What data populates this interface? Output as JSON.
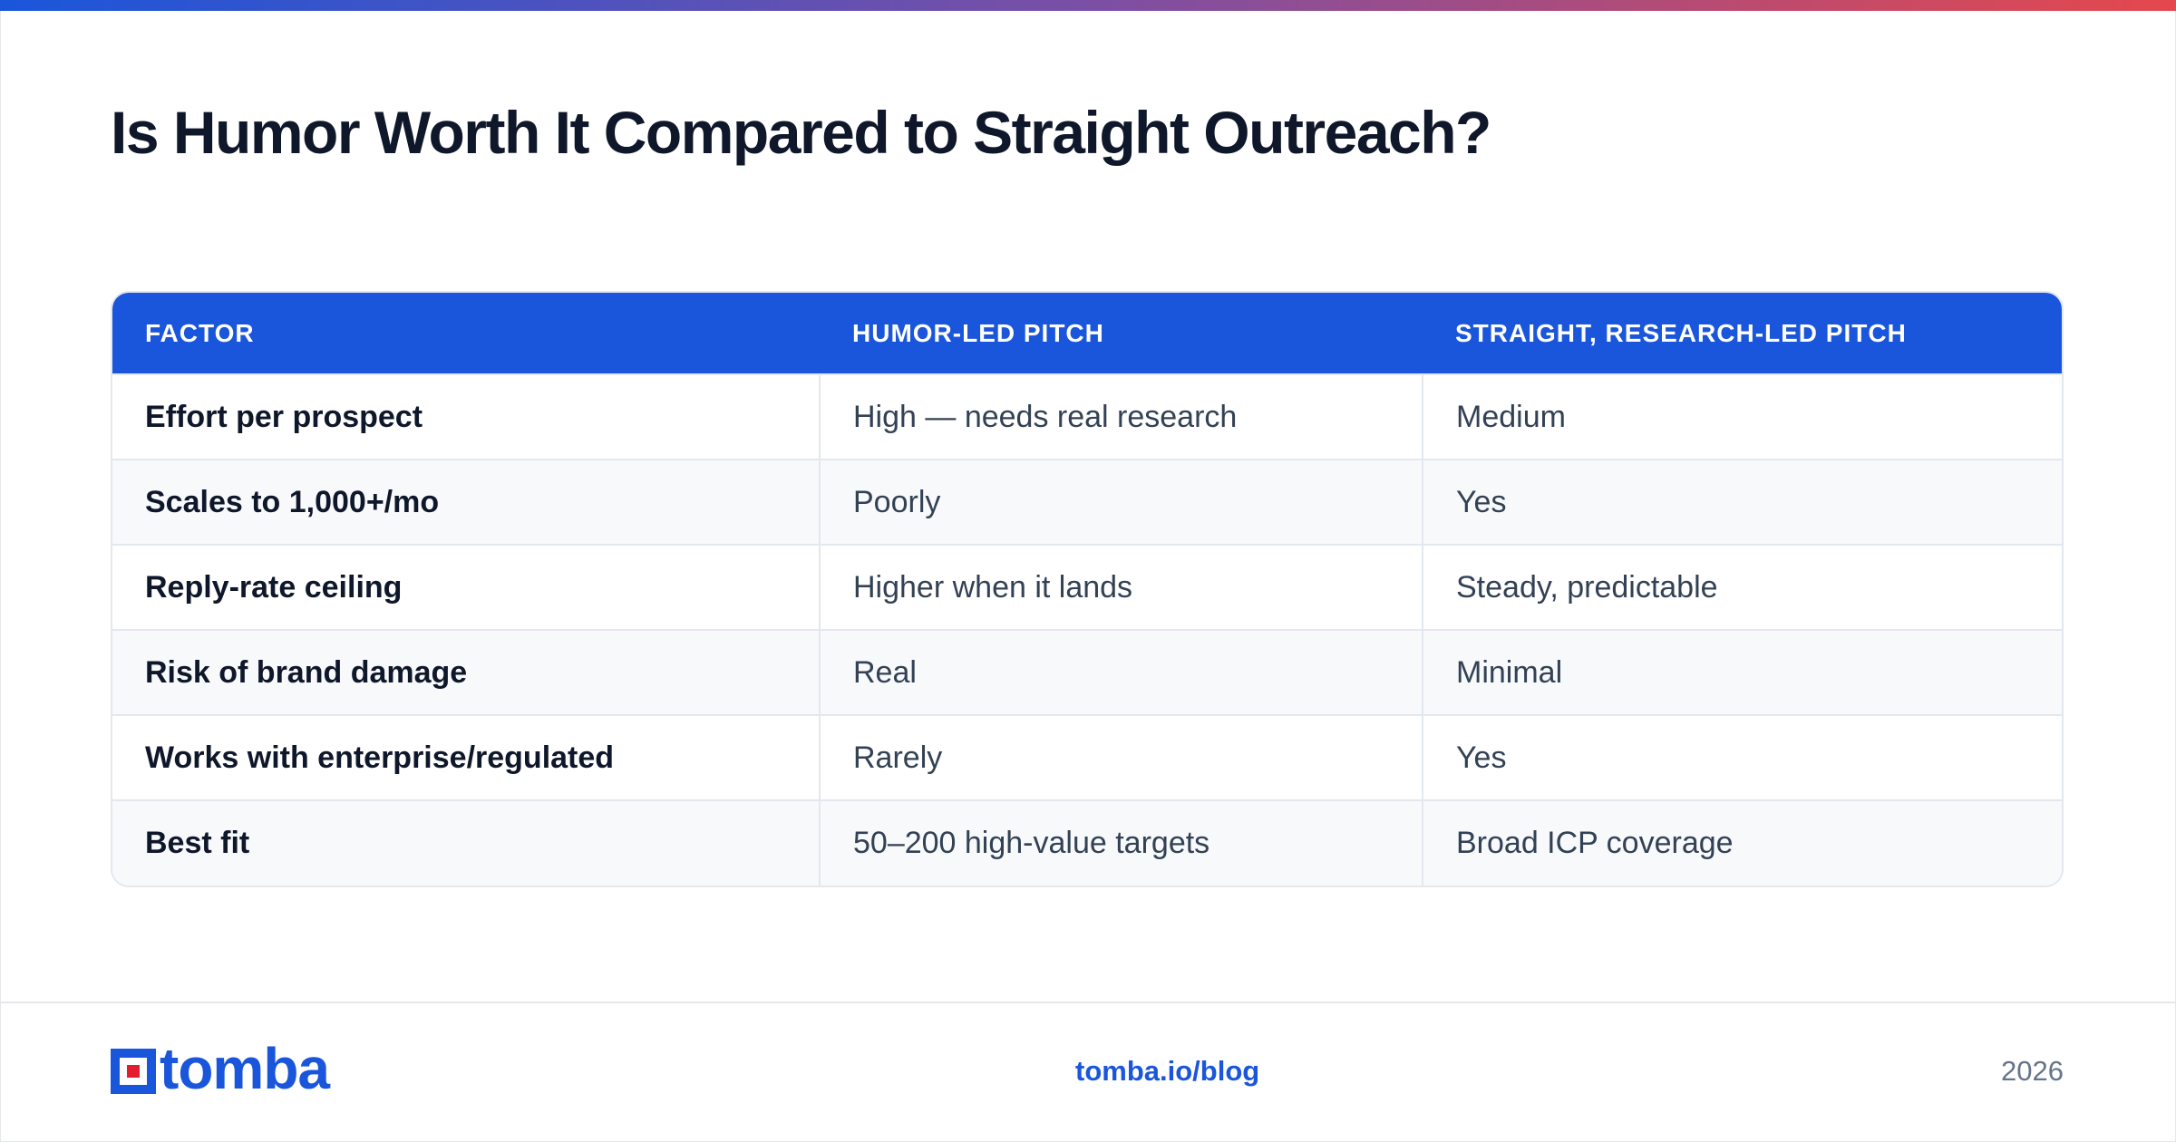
{
  "title": "Is Humor Worth It Compared to Straight Outreach?",
  "colors": {
    "accent": "#1a56db",
    "gradient_start": "#1a56db",
    "gradient_end": "#e5484d",
    "logo_red": "#e11d2e"
  },
  "table": {
    "headers": [
      "FACTOR",
      "HUMOR-LED PITCH",
      "STRAIGHT, RESEARCH-LED PITCH"
    ],
    "rows": [
      [
        "Effort per prospect",
        "High — needs real research",
        "Medium"
      ],
      [
        "Scales to 1,000+/mo",
        "Poorly",
        "Yes"
      ],
      [
        "Reply-rate ceiling",
        "Higher when it lands",
        "Steady, predictable"
      ],
      [
        "Risk of brand damage",
        "Real",
        "Minimal"
      ],
      [
        "Works with enterprise/regulated",
        "Rarely",
        "Yes"
      ],
      [
        "Best fit",
        "50–200 high-value targets",
        "Broad ICP coverage"
      ]
    ]
  },
  "footer": {
    "logo_icon": "tomba-logo-icon",
    "logo_text": "tomba",
    "url": "tomba.io/blog",
    "year": "2026"
  }
}
